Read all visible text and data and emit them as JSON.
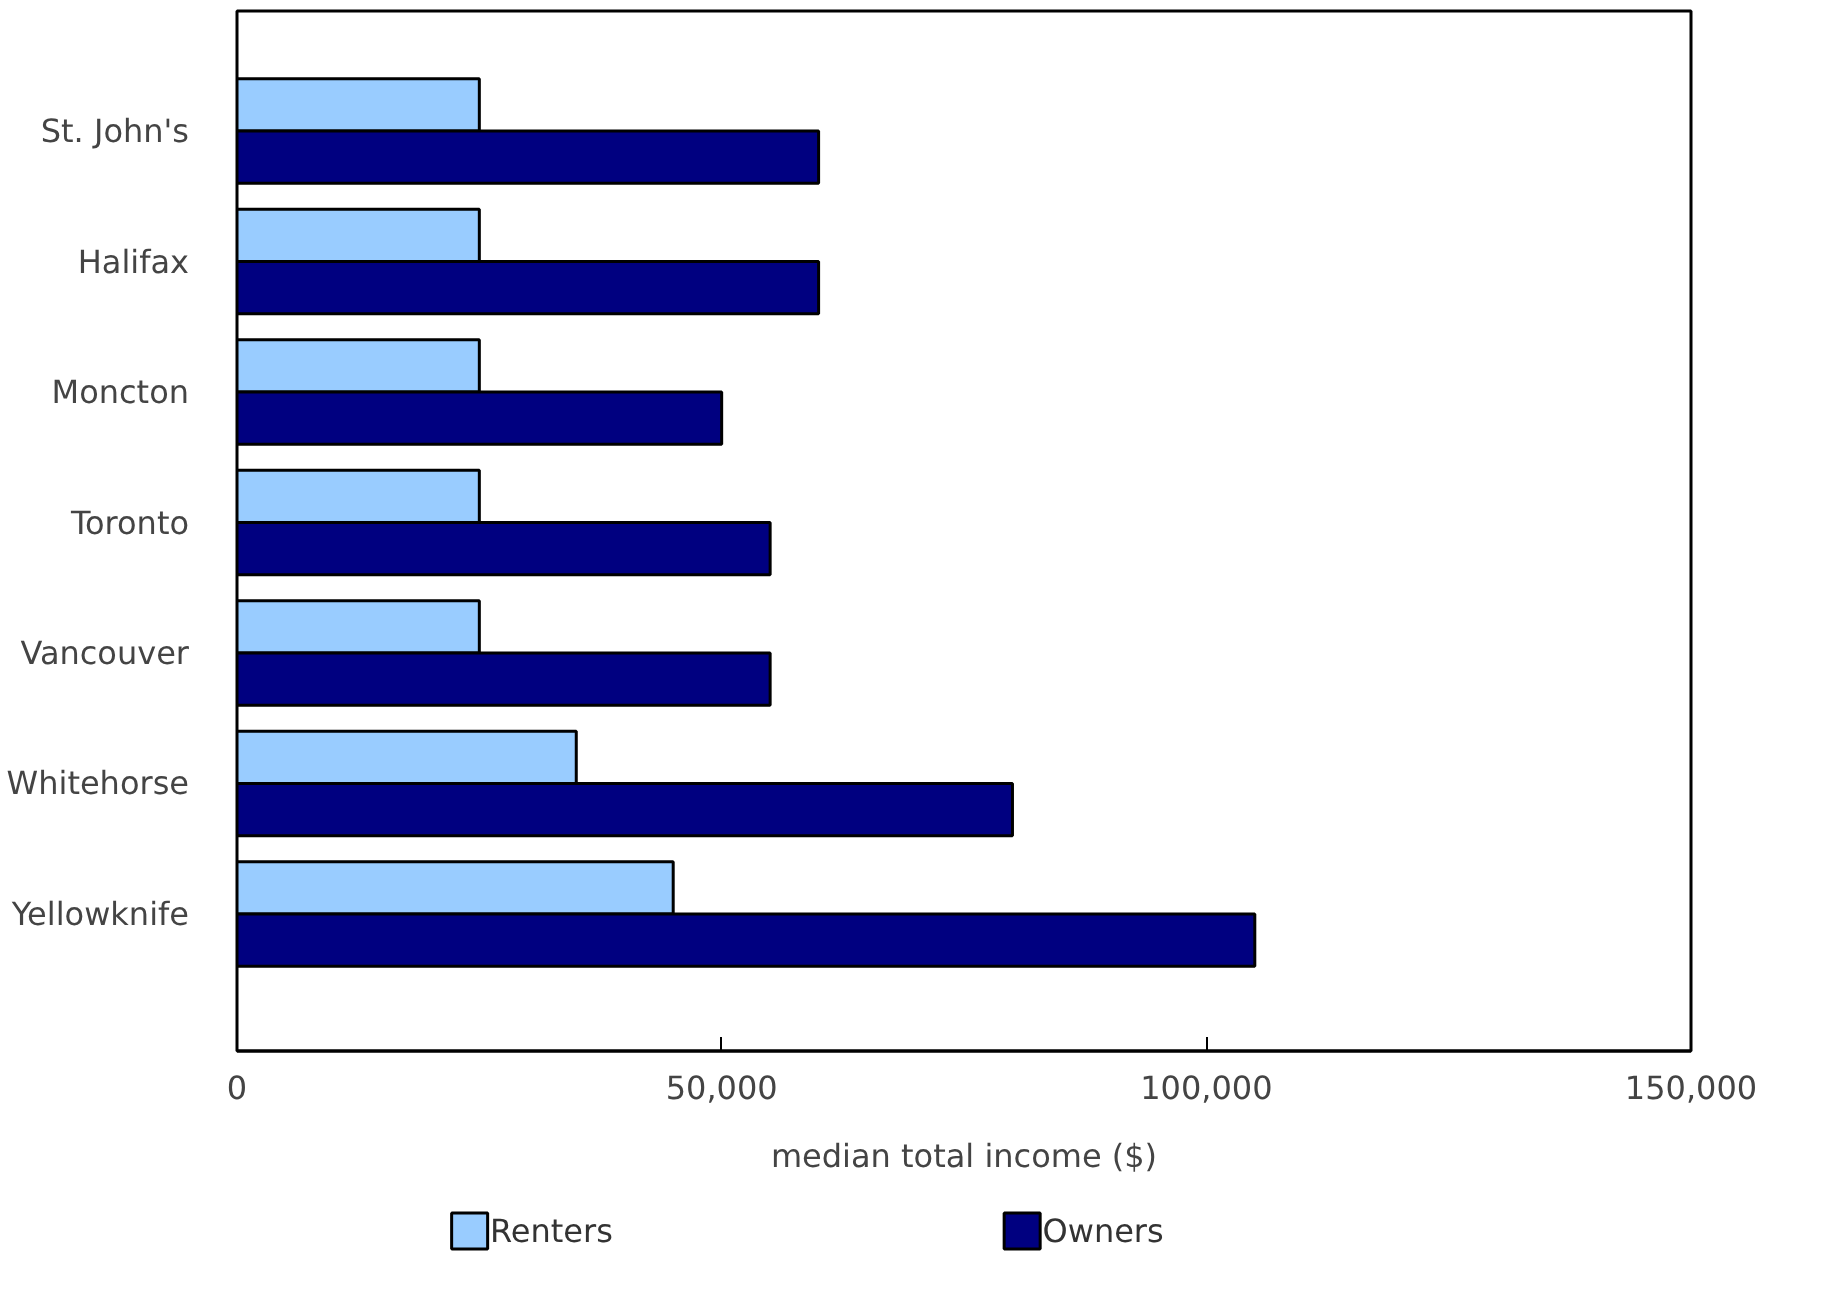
{
  "chart_data": {
    "type": "bar",
    "orientation": "horizontal",
    "xlabel": "median total income ($)",
    "categories": [
      "St. John's",
      "Halifax",
      "Moncton",
      "Toronto",
      "Vancouver",
      "Whitehorse",
      "Yellowknife"
    ],
    "series": [
      {
        "name": "Renters",
        "color": "#99ccff",
        "values": [
          25000,
          25000,
          25000,
          25000,
          25000,
          35000,
          45000
        ]
      },
      {
        "name": "Owners",
        "color": "#000080",
        "values": [
          60000,
          60000,
          50000,
          55000,
          55000,
          80000,
          105000
        ]
      }
    ],
    "xlim": [
      0,
      150000
    ],
    "xticks": [
      0,
      {
        "value": 50000,
        "label": "50,000"
      },
      {
        "value": 100000,
        "label": "100,000"
      },
      {
        "value": 150000,
        "label": "150,000"
      }
    ],
    "grid": false,
    "legend": "bottom"
  }
}
